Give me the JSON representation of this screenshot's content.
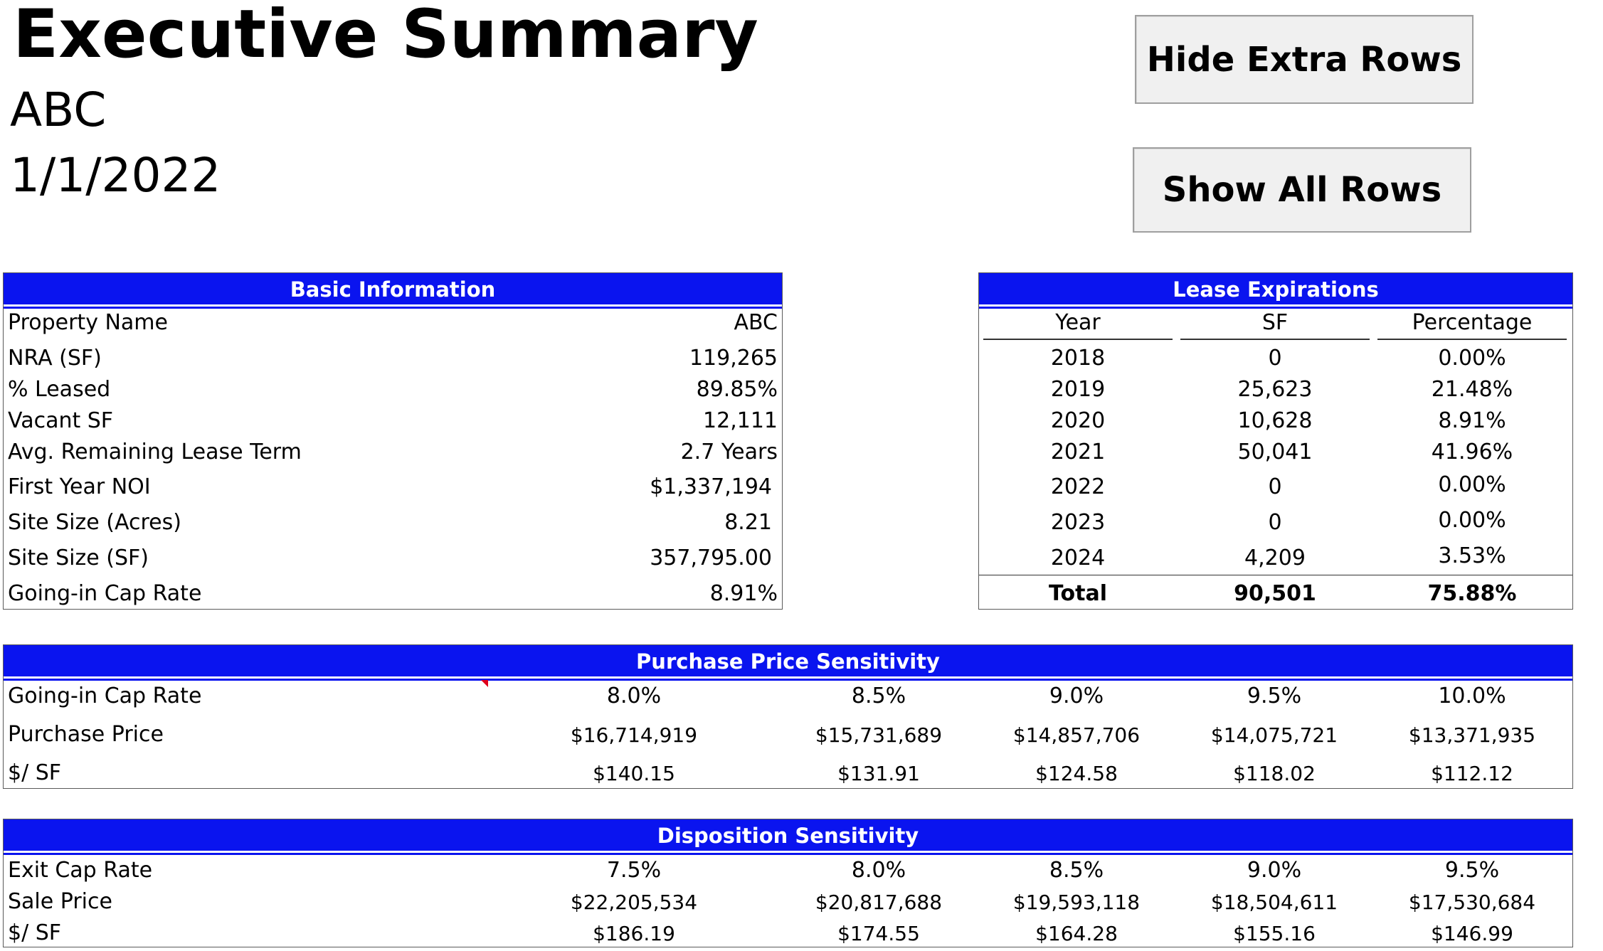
{
  "header": {
    "title": "Executive Summary",
    "company": "ABC",
    "date": "1/1/2022"
  },
  "buttons": {
    "hide_rows": "Hide Extra Rows",
    "show_rows": "Show All Rows"
  },
  "basic_info": {
    "title": "Basic Information",
    "rows": [
      {
        "label": "Property Name",
        "value": "ABC"
      },
      {
        "label": "NRA (SF)",
        "value": "119,265"
      },
      {
        "label": "% Leased",
        "value": "89.85%"
      },
      {
        "label": "Vacant SF",
        "value": "12,111"
      },
      {
        "label": "Avg. Remaining Lease Term",
        "value": "2.7 Years"
      },
      {
        "label": "First Year NOI",
        "value": "$1,337,194"
      },
      {
        "label": "Site Size (Acres)",
        "value": "8.21"
      },
      {
        "label": "Site Size (SF)",
        "value": "357,795.00"
      },
      {
        "label": "Going-in Cap Rate",
        "value": "8.91%"
      }
    ]
  },
  "lease_expirations": {
    "title": "Lease Expirations",
    "headers": [
      "Year",
      "SF",
      "Percentage"
    ],
    "rows": [
      [
        "2018",
        "0",
        "0.00%"
      ],
      [
        "2019",
        "25,623",
        "21.48%"
      ],
      [
        "2020",
        "10,628",
        "8.91%"
      ],
      [
        "2021",
        "50,041",
        "41.96%"
      ],
      [
        "2022",
        "0",
        "0.00%"
      ],
      [
        "2023",
        "0",
        "0.00%"
      ],
      [
        "2024",
        "4,209",
        "3.53%"
      ]
    ],
    "total": [
      "Total",
      "90,501",
      "75.88%"
    ]
  },
  "purchase_sensitivity": {
    "title": "Purchase Price Sensitivity",
    "rows": [
      {
        "label": "Going-in Cap Rate",
        "values": [
          "8.0%",
          "8.5%",
          "9.0%",
          "9.5%",
          "10.0%"
        ]
      },
      {
        "label": "Purchase Price",
        "values": [
          "$16,714,919",
          "$15,731,689",
          "$14,857,706",
          "$14,075,721",
          "$13,371,935"
        ]
      },
      {
        "label": "$/ SF",
        "values": [
          "$140.15",
          "$131.91",
          "$124.58",
          "$118.02",
          "$112.12"
        ]
      }
    ]
  },
  "disposition_sensitivity": {
    "title": "Disposition Sensitivity",
    "rows": [
      {
        "label": "Exit Cap Rate",
        "values": [
          "7.5%",
          "8.0%",
          "8.5%",
          "9.0%",
          "9.5%"
        ]
      },
      {
        "label": "Sale Price",
        "values": [
          "$22,205,534",
          "$20,817,688",
          "$19,593,118",
          "$18,504,611",
          "$17,530,684"
        ]
      },
      {
        "label": "$/ SF",
        "values": [
          "$186.19",
          "$174.55",
          "$164.28",
          "$155.16",
          "$146.99"
        ]
      }
    ]
  },
  "colors": {
    "band": "#0a14ef",
    "comment_marker": "#e0001b"
  }
}
